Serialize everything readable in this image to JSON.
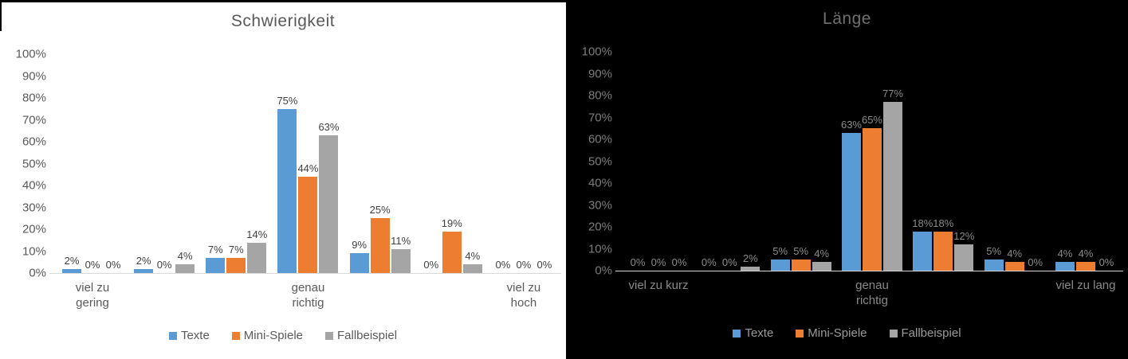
{
  "chart_data": [
    {
      "type": "bar",
      "title": "Schwierigkeit",
      "theme": "light",
      "background": "#FFFFFF",
      "grid": false,
      "legend_position": "bottom",
      "ylim": [
        0,
        100
      ],
      "y_ticks": [
        "100%",
        "90%",
        "80%",
        "70%",
        "60%",
        "50%",
        "40%",
        "30%",
        "20%",
        "10%",
        "0%"
      ],
      "categories": [
        "viel zu\ngering",
        "",
        "",
        "genau\nrichtig",
        "",
        "",
        "viel zu hoch"
      ],
      "series": [
        {
          "name": "Texte",
          "color": "#5B9BD5",
          "values": [
            2,
            2,
            7,
            75,
            9,
            0,
            0
          ]
        },
        {
          "name": "Mini-Spiele",
          "color": "#ED7D31",
          "values": [
            0,
            0,
            7,
            44,
            25,
            19,
            0
          ]
        },
        {
          "name": "Fallbeispiel",
          "color": "#A5A5A5",
          "values": [
            0,
            4,
            14,
            63,
            11,
            4,
            0
          ]
        }
      ],
      "data_label_suffix": "%"
    },
    {
      "type": "bar",
      "title": "Länge",
      "theme": "dark",
      "background": "#000000",
      "grid": false,
      "legend_position": "bottom",
      "ylim": [
        0,
        100
      ],
      "y_ticks": [
        "100%",
        "90%",
        "80%",
        "70%",
        "60%",
        "50%",
        "40%",
        "30%",
        "20%",
        "10%",
        "0%"
      ],
      "categories": [
        "viel zu kurz",
        "",
        "",
        "genau\nrichtig",
        "",
        "",
        "viel zu lang"
      ],
      "series": [
        {
          "name": "Texte",
          "color": "#5B9BD5",
          "values": [
            0,
            0,
            5,
            63,
            18,
            5,
            4
          ]
        },
        {
          "name": "Mini-Spiele",
          "color": "#ED7D31",
          "values": [
            0,
            0,
            5,
            65,
            18,
            4,
            4
          ]
        },
        {
          "name": "Fallbeispiel",
          "color": "#A5A5A5",
          "values": [
            0,
            2,
            4,
            77,
            12,
            0,
            0
          ]
        }
      ],
      "data_label_suffix": "%"
    }
  ]
}
